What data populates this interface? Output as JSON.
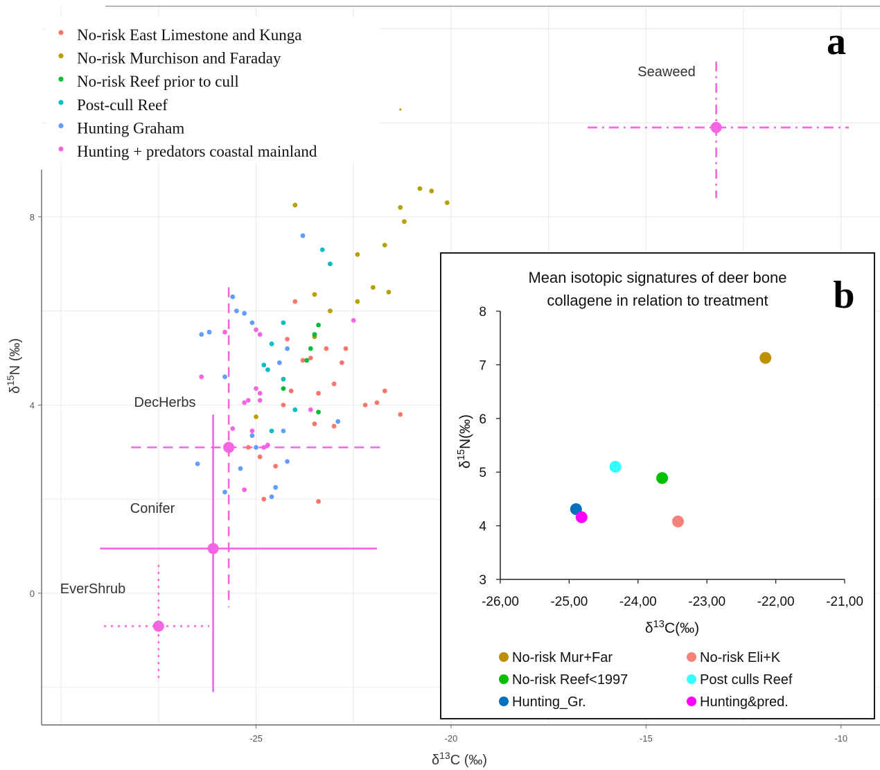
{
  "chart_data": [
    {
      "type": "scatter",
      "panel_label": "a",
      "xlabel": "δ13C (‰)",
      "ylabel": "δ15N (‰)",
      "xlim": [
        -30.5,
        -9
      ],
      "ylim": [
        -2.8,
        9
      ],
      "xticks": [
        -25,
        -20,
        -15,
        -10
      ],
      "yticks": [
        0,
        4,
        8
      ],
      "grid": true,
      "legend_position": "top-left",
      "series": [
        {
          "name": "No-risk East Limestone and Kunga",
          "color": "#f8766d",
          "points": [
            [
              -24.0,
              6.2
            ],
            [
              -23.6,
              5.0
            ],
            [
              -23.2,
              5.2
            ],
            [
              -22.7,
              5.2
            ],
            [
              -22.8,
              4.9
            ],
            [
              -24.2,
              5.4
            ],
            [
              -24.1,
              4.3
            ],
            [
              -23.4,
              4.25
            ],
            [
              -23.0,
              4.45
            ],
            [
              -21.7,
              4.3
            ],
            [
              -21.9,
              4.05
            ],
            [
              -22.2,
              4.0
            ],
            [
              -21.3,
              3.8
            ],
            [
              -24.3,
              4.0
            ],
            [
              -23.5,
              3.6
            ],
            [
              -23.0,
              3.55
            ],
            [
              -25.2,
              3.1
            ],
            [
              -24.9,
              2.9
            ],
            [
              -24.5,
              2.7
            ],
            [
              -24.8,
              2.0
            ],
            [
              -23.4,
              1.95
            ],
            [
              -23.8,
              4.95
            ]
          ]
        },
        {
          "name": "No-risk Murchison and Faraday",
          "color": "#b79f00",
          "points": [
            [
              -24.0,
              8.25
            ],
            [
              -21.3,
              9.6
            ],
            [
              -20.8,
              8.6
            ],
            [
              -20.5,
              8.55
            ],
            [
              -20.1,
              8.3
            ],
            [
              -21.3,
              8.2
            ],
            [
              -21.2,
              7.9
            ],
            [
              -21.7,
              7.4
            ],
            [
              -22.4,
              7.2
            ],
            [
              -22.0,
              6.5
            ],
            [
              -22.4,
              6.2
            ],
            [
              -21.6,
              6.4
            ],
            [
              -23.5,
              6.35
            ],
            [
              -23.1,
              6.0
            ],
            [
              -23.5,
              5.45
            ],
            [
              -25.0,
              3.75
            ]
          ]
        },
        {
          "name": "No-risk Reef prior to cull",
          "color": "#00ba38",
          "points": [
            [
              -23.4,
              5.7
            ],
            [
              -23.5,
              5.5
            ],
            [
              -23.6,
              5.2
            ],
            [
              -23.7,
              4.95
            ],
            [
              -24.3,
              4.35
            ],
            [
              -23.4,
              3.85
            ]
          ]
        },
        {
          "name": "Post-cull Reef",
          "color": "#00bfc4",
          "points": [
            [
              -23.3,
              7.3
            ],
            [
              -23.1,
              7.0
            ],
            [
              -24.3,
              5.75
            ],
            [
              -24.6,
              5.3
            ],
            [
              -24.8,
              4.85
            ],
            [
              -24.7,
              4.75
            ],
            [
              -24.3,
              4.55
            ],
            [
              -24.6,
              3.45
            ],
            [
              -24.0,
              3.9
            ]
          ]
        },
        {
          "name": "Hunting Graham",
          "color": "#619cff",
          "points": [
            [
              -23.8,
              7.6
            ],
            [
              -25.6,
              6.3
            ],
            [
              -25.5,
              6.0
            ],
            [
              -25.3,
              5.95
            ],
            [
              -25.1,
              5.75
            ],
            [
              -26.4,
              5.5
            ],
            [
              -26.2,
              5.55
            ],
            [
              -24.4,
              4.9
            ],
            [
              -25.8,
              4.6
            ],
            [
              -24.2,
              5.2
            ],
            [
              -24.3,
              3.45
            ],
            [
              -25.1,
              3.35
            ],
            [
              -24.2,
              2.8
            ],
            [
              -25.4,
              2.65
            ],
            [
              -25.0,
              3.1
            ],
            [
              -26.5,
              2.75
            ],
            [
              -25.8,
              2.15
            ],
            [
              -24.5,
              2.25
            ],
            [
              -24.6,
              2.05
            ],
            [
              -22.9,
              3.65
            ]
          ]
        },
        {
          "name": "Hunting + predators coastal mainland",
          "color": "#f564e3",
          "points": [
            [
              -22.5,
              5.8
            ],
            [
              -25.0,
              5.6
            ],
            [
              -24.9,
              5.5
            ],
            [
              -25.8,
              5.55
            ],
            [
              -26.4,
              4.6
            ],
            [
              -25.0,
              4.35
            ],
            [
              -24.9,
              4.25
            ],
            [
              -25.2,
              4.1
            ],
            [
              -25.3,
              4.05
            ],
            [
              -24.9,
              4.1
            ],
            [
              -23.6,
              3.9
            ],
            [
              -25.6,
              3.5
            ],
            [
              -25.1,
              3.45
            ],
            [
              -24.7,
              3.15
            ],
            [
              -24.8,
              3.1
            ],
            [
              -25.3,
              2.2
            ]
          ]
        }
      ],
      "sources": [
        {
          "name": "Seaweed",
          "x": -13.2,
          "y": 9.9,
          "x_range": [
            -16.5,
            -9.8
          ],
          "y_range": [
            8.4,
            11.3
          ],
          "line": "dashdot",
          "color": "#f564e3"
        },
        {
          "name": "DecHerbs",
          "x": -25.7,
          "y": 3.1,
          "x_range": [
            -28.2,
            -21.7
          ],
          "y_range": [
            -0.3,
            6.5
          ],
          "line": "dashed",
          "color": "#f564e3"
        },
        {
          "name": "Conifer",
          "x": -26.1,
          "y": 0.95,
          "x_range": [
            -29.0,
            -21.9
          ],
          "y_range": [
            -2.1,
            3.8
          ],
          "line": "solid",
          "color": "#f564e3"
        },
        {
          "name": "EverShrub",
          "x": -27.5,
          "y": -0.7,
          "x_range": [
            -28.9,
            -26.2
          ],
          "y_range": [
            -1.9,
            0.6
          ],
          "line": "dotted",
          "color": "#f564e3"
        }
      ]
    },
    {
      "type": "scatter",
      "panel_label": "b",
      "title_lines": [
        "Mean isotopic signatures of deer bone",
        "collagene in relation to treatment"
      ],
      "xlabel": "δ13C(‰)",
      "ylabel": "δ15N(‰)",
      "xlim": [
        -26,
        -21
      ],
      "ylim": [
        3,
        8
      ],
      "xticks": [
        -26,
        -25,
        -24,
        -23,
        -22,
        -21
      ],
      "xtick_labels": [
        "-26,00",
        "-25,00",
        "-24,00",
        "-23,00",
        "-22,00",
        "-21,00"
      ],
      "yticks": [
        3,
        4,
        5,
        6,
        7,
        8
      ],
      "grid": false,
      "legend_position": "bottom",
      "series": [
        {
          "name": "No-risk Mur+Far",
          "color": "#bf9000",
          "x": -22.15,
          "y": 7.13
        },
        {
          "name": "No-risk Eli+K",
          "color": "#f4817a",
          "x": -23.42,
          "y": 4.08
        },
        {
          "name": "No-risk  Reef<1997",
          "color": "#00c000",
          "x": -23.65,
          "y": 4.89
        },
        {
          "name": "Post culls Reef",
          "color": "#33ffff",
          "x": -24.33,
          "y": 5.1
        },
        {
          "name": "Hunting_Gr.",
          "color": "#0070c0",
          "x": -24.9,
          "y": 4.31
        },
        {
          "name": "Hunting&pred.",
          "color": "#ff00ff",
          "x": -24.82,
          "y": 4.16
        }
      ]
    }
  ]
}
